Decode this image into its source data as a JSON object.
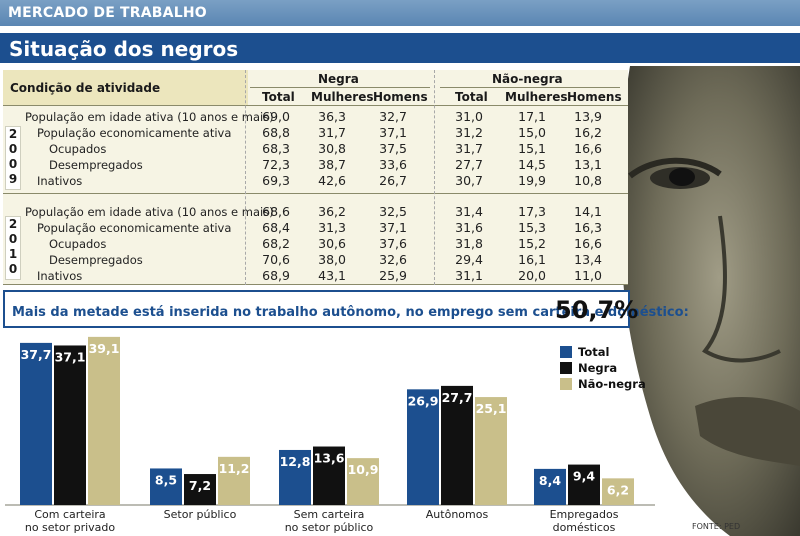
{
  "header": {
    "section": "MERCADO DE TRABALHO",
    "title": "Situação dos negros"
  },
  "table": {
    "row_header": "Condição de atividade",
    "groups": [
      "Negra",
      "Não-negra"
    ],
    "columns": [
      "Total",
      "Mulheres",
      "Homens",
      "Total",
      "Mulheres",
      "Homens"
    ],
    "years": [
      {
        "year": "2009",
        "digits": [
          "2",
          "0",
          "0",
          "9"
        ],
        "rows": [
          {
            "label": "População em idade ativa (10 anos e mais)",
            "values": [
              "69,0",
              "36,3",
              "32,7",
              "31,0",
              "17,1",
              "13,9"
            ]
          },
          {
            "label": "População economicamente ativa",
            "values": [
              "68,8",
              "31,7",
              "37,1",
              "31,2",
              "15,0",
              "16,2"
            ]
          },
          {
            "label": "Ocupados",
            "values": [
              "68,3",
              "30,8",
              "37,5",
              "31,7",
              "15,1",
              "16,6"
            ]
          },
          {
            "label": "Desempregados",
            "values": [
              "72,3",
              "38,7",
              "33,6",
              "27,7",
              "14,5",
              "13,1"
            ]
          },
          {
            "label": "Inativos",
            "values": [
              "69,3",
              "42,6",
              "26,7",
              "30,7",
              "19,9",
              "10,8"
            ]
          }
        ]
      },
      {
        "year": "2010",
        "digits": [
          "2",
          "0",
          "1",
          "0"
        ],
        "rows": [
          {
            "label": "População em idade ativa (10 anos e mais)",
            "values": [
              "68,6",
              "36,2",
              "32,5",
              "31,4",
              "17,3",
              "14,1"
            ]
          },
          {
            "label": "População economicamente ativa",
            "values": [
              "68,4",
              "31,3",
              "37,1",
              "31,6",
              "15,3",
              "16,3"
            ]
          },
          {
            "label": "Ocupados",
            "values": [
              "68,2",
              "30,6",
              "37,6",
              "31,8",
              "15,2",
              "16,6"
            ]
          },
          {
            "label": "Desempregados",
            "values": [
              "70,6",
              "38,0",
              "32,6",
              "29,4",
              "16,1",
              "13,4"
            ]
          },
          {
            "label": "Inativos",
            "values": [
              "68,9",
              "43,1",
              "25,9",
              "31,1",
              "20,0",
              "11,0"
            ]
          }
        ]
      }
    ]
  },
  "highlight": {
    "text": "Mais da metade está inserida no trabalho autônomo, no emprego sem carteira e doméstico:",
    "value": "50,7%"
  },
  "chart_data": {
    "type": "bar",
    "categories": [
      "Com carteira\nno setor privado",
      "Setor público",
      "Sem carteira\nno setor público",
      "Autônomos",
      "Empregados\ndomésticos"
    ],
    "series": [
      {
        "name": "Total",
        "values": [
          37.7,
          8.5,
          12.8,
          26.9,
          8.4
        ],
        "labels": [
          "37,7",
          "8,5",
          "12,8",
          "26,9",
          "8,4"
        ],
        "color": "#1c4f8f"
      },
      {
        "name": "Negra",
        "values": [
          37.1,
          7.2,
          13.6,
          27.7,
          9.4
        ],
        "labels": [
          "37,1",
          "7,2",
          "13,6",
          "27,7",
          "9,4"
        ],
        "color": "#111111"
      },
      {
        "name": "Não-negra",
        "values": [
          39.1,
          11.2,
          10.9,
          25.1,
          6.2
        ],
        "labels": [
          "39,1",
          "11,2",
          "10,9",
          "25,1",
          "6,2"
        ],
        "color": "#c9bf8a"
      }
    ],
    "legend": "top-right"
  },
  "source": "FONTE: PED"
}
